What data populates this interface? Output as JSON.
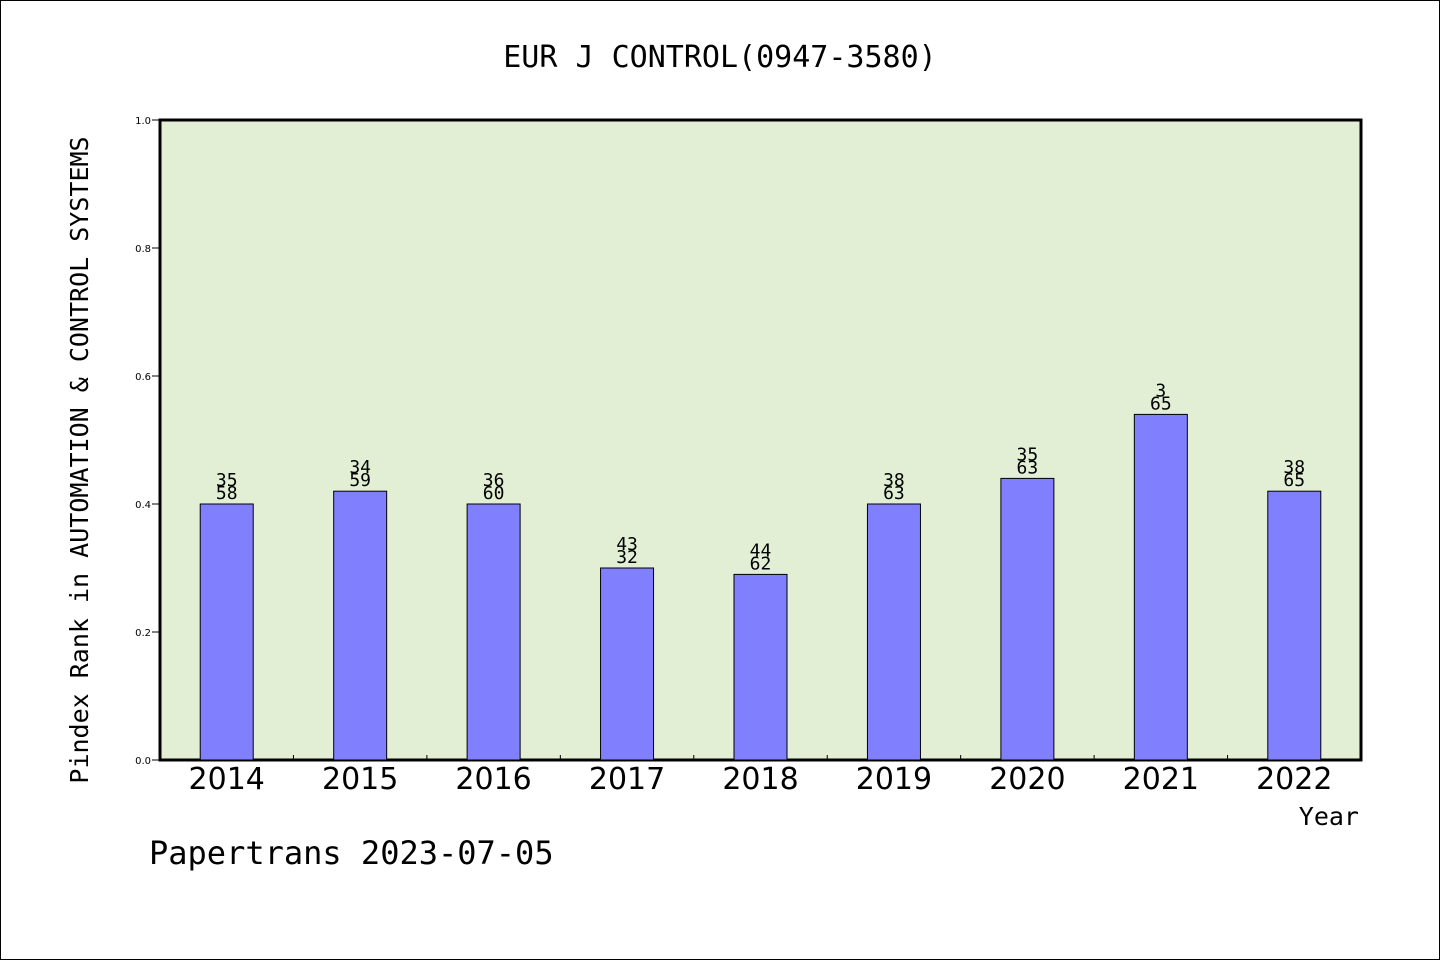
{
  "chart_data": {
    "type": "bar",
    "title": "EUR J CONTROL(0947-3580)",
    "xlabel": "Year",
    "ylabel": "Pindex Rank in AUTOMATION & CONTROL SYSTEMS",
    "ylim": [
      0,
      1.0
    ],
    "yticks": [
      "0.0",
      "0.2",
      "0.4",
      "0.6",
      "0.8",
      "1.0"
    ],
    "categories": [
      "2014",
      "2015",
      "2016",
      "2017",
      "2018",
      "2019",
      "2020",
      "2021",
      "2022"
    ],
    "values": [
      0.4,
      0.42,
      0.4,
      0.3,
      0.29,
      0.4,
      0.44,
      0.54,
      0.42
    ],
    "label_top": [
      "35",
      "34",
      "36",
      "43",
      "44",
      "38",
      "35",
      "3",
      "38"
    ],
    "label_bottom": [
      "58",
      "59",
      "60",
      "32",
      "62",
      "63",
      "63",
      "65",
      "65"
    ],
    "grid": false,
    "colors": {
      "bar": "#8080ff",
      "plot_bg": "#e2efd5",
      "axis": "#000000"
    }
  },
  "footer": {
    "credit": "Papertrans 2023-07-05"
  }
}
